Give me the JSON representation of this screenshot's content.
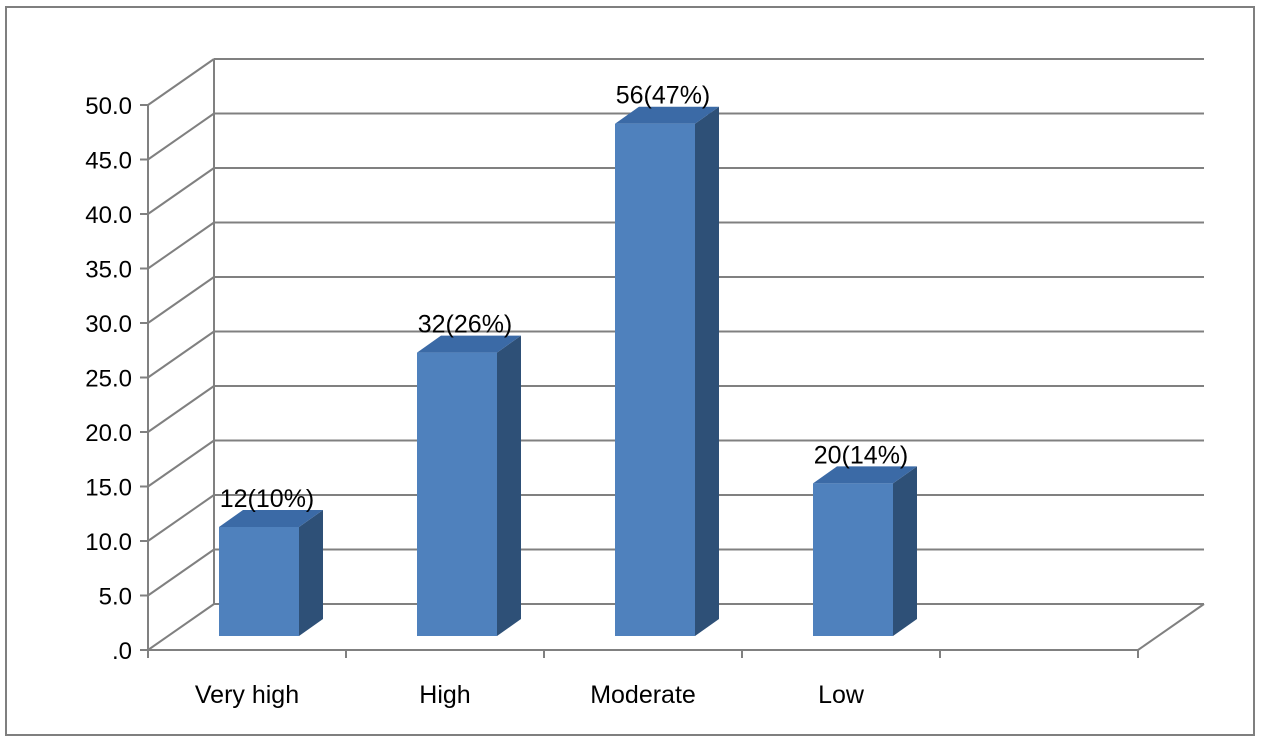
{
  "chart_data": {
    "type": "bar",
    "style": "3d-column",
    "categories": [
      "Very high",
      "High",
      "Moderate",
      "Low"
    ],
    "values": [
      10,
      26,
      47,
      14
    ],
    "data_labels": [
      "12(10%)",
      "32(26%)",
      "56(47%)",
      "20(14%)"
    ],
    "y_tick_labels": [
      ".0",
      "5.0",
      "10.0",
      "15.0",
      "20.0",
      "25.0",
      "30.0",
      "35.0",
      "40.0",
      "45.0",
      "50.0"
    ],
    "ylim": [
      0,
      50
    ],
    "extra_category_slots": 1,
    "grid": true,
    "legend": "none",
    "title": "",
    "xlabel": "",
    "ylabel": "",
    "colors": {
      "bar_front": "#4f81bd",
      "bar_side": "#2e5077",
      "bar_top": "#3b6aa6",
      "grid": "#808080",
      "frame": "#7f7f7f"
    }
  }
}
